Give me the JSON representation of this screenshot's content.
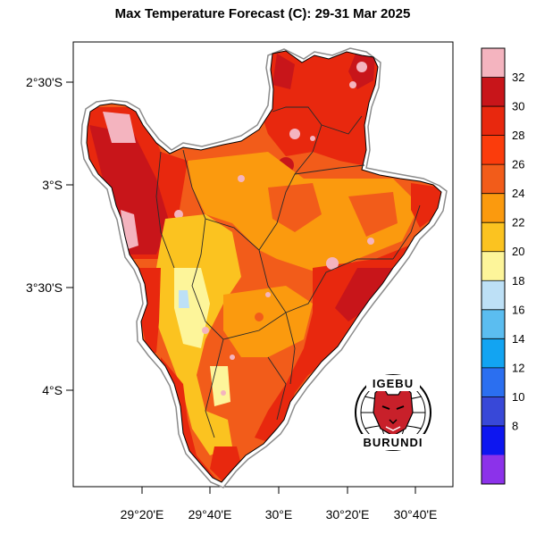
{
  "title": "Max Temperature Forecast (C): 29-31 Mar 2025",
  "lat_labels": [
    "2°30'S",
    "3°S",
    "3°30'S",
    "4°S"
  ],
  "lon_labels": [
    "29°20'E",
    "29°40'E",
    "30°E",
    "30°20'E",
    "30°40'E"
  ],
  "colorbar": {
    "labels": [
      "32",
      "30",
      "28",
      "26",
      "24",
      "22",
      "20",
      "18",
      "16",
      "14",
      "12",
      "10",
      "8"
    ],
    "colors": [
      "#f4b4bf",
      "#c8151a",
      "#e8280e",
      "#fb3c0c",
      "#f25c1a",
      "#fb9a0e",
      "#fbc320",
      "#fdf59a",
      "#bde0f6",
      "#5bbdf0",
      "#12a4f2",
      "#2b6ff0",
      "#3848d8",
      "#0d16f0",
      "#8c32ea"
    ]
  },
  "logo": {
    "text_top": "IGEBU",
    "text_bottom": "BURUNDI",
    "icon": "leopard-head-icon"
  },
  "map": {
    "region": "Burundi",
    "dominant_ranges": [
      "26-28",
      "24-26",
      "28-30",
      "22-24"
    ]
  }
}
